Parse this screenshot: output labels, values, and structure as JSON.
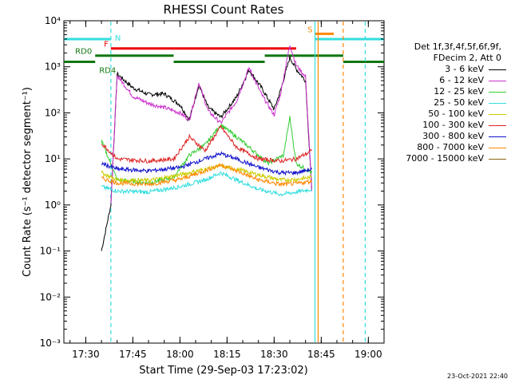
{
  "chart_data": {
    "type": "line",
    "title": "RHESSI Count Rates",
    "xlabel": "Start Time (29-Sep-03 17:23:02)",
    "ylabel": "Count Rate (s⁻¹ detector segment⁻¹)",
    "yscale": "log",
    "ylim": [
      0.001,
      10000
    ],
    "y_ticks": [
      "10⁻³",
      "10⁻²",
      "10⁻¹",
      "10⁰",
      "10¹",
      "10²",
      "10³",
      "10⁴"
    ],
    "xlim": [
      "17:23:02",
      "19:05:00"
    ],
    "x_ticks": [
      "17:30",
      "17:45",
      "18:00",
      "18:15",
      "18:30",
      "18:45",
      "19:00"
    ],
    "legend_header": [
      "Det 1f,3f,4f,5f,6f,9f,",
      "FDecim 2, Att 0"
    ],
    "legend_placement": "right",
    "series": [
      {
        "name": "3 - 6 keV",
        "color": "#000000",
        "x": [
          "17:35:00",
          "17:38:00",
          "17:40:00",
          "17:45:00",
          "17:50:00",
          "17:55:00",
          "18:00:00",
          "18:03:00",
          "18:06:00",
          "18:09:00",
          "18:13:00",
          "18:18:00",
          "18:22:00",
          "18:26:00",
          "18:30:00",
          "18:32:00",
          "18:35:00",
          "18:37:00",
          "18:40:00",
          "18:42:00"
        ],
        "y": [
          0.1,
          1.0,
          700,
          350,
          250,
          260,
          150,
          70,
          400,
          130,
          80,
          220,
          850,
          350,
          120,
          300,
          1600,
          900,
          500,
          2
        ]
      },
      {
        "name": "6 - 12 keV",
        "color": "#cc33cc",
        "x": [
          "17:38:00",
          "17:40:00",
          "17:45:00",
          "17:50:00",
          "17:55:00",
          "18:00:00",
          "18:03:00",
          "18:06:00",
          "18:09:00",
          "18:13:00",
          "18:18:00",
          "18:22:00",
          "18:26:00",
          "18:30:00",
          "18:32:00",
          "18:35:00",
          "18:37:00",
          "18:40:00",
          "18:42:00"
        ],
        "y": [
          1.0,
          650,
          230,
          160,
          130,
          100,
          70,
          450,
          110,
          60,
          180,
          950,
          250,
          90,
          250,
          3000,
          1100,
          600,
          2
        ]
      },
      {
        "name": "12 - 25 keV",
        "color": "#33cc33",
        "x": [
          "17:35:00",
          "17:40:00",
          "17:50:00",
          "17:58:00",
          "18:03:00",
          "18:08:00",
          "18:13:00",
          "18:18:00",
          "18:22:00",
          "18:28:00",
          "18:33:00",
          "18:35:00",
          "18:37:00",
          "18:42:00"
        ],
        "y": [
          25,
          3.5,
          3.0,
          4.0,
          12,
          20,
          55,
          30,
          18,
          8,
          12,
          80,
          8,
          5
        ]
      },
      {
        "name": "25 - 50 keV",
        "color": "#33dddd",
        "x": [
          "17:35:00",
          "17:40:00",
          "17:50:00",
          "18:00:00",
          "18:08:00",
          "18:13:00",
          "18:18:00",
          "18:25:00",
          "18:32:00",
          "18:37:00",
          "18:42:00"
        ],
        "y": [
          2.5,
          2.0,
          1.9,
          2.5,
          3.5,
          5.0,
          3.5,
          2.2,
          1.7,
          1.9,
          2.2
        ]
      },
      {
        "name": "50 - 100 keV",
        "color": "#cccc00",
        "x": [
          "17:35:00",
          "17:40:00",
          "17:50:00",
          "18:00:00",
          "18:08:00",
          "18:13:00",
          "18:18:00",
          "18:25:00",
          "18:32:00",
          "18:37:00",
          "18:42:00"
        ],
        "y": [
          5,
          3.5,
          3.4,
          4.5,
          6,
          7,
          6,
          4.5,
          3.5,
          3.6,
          4
        ]
      },
      {
        "name": "100 - 300 keV",
        "color": "#dd2222",
        "x": [
          "17:35:00",
          "17:40:00",
          "17:50:00",
          "17:58:00",
          "18:03:00",
          "18:08:00",
          "18:13:00",
          "18:18:00",
          "18:25:00",
          "18:32:00",
          "18:37:00",
          "18:42:00"
        ],
        "y": [
          22,
          10,
          9,
          10,
          30,
          15,
          50,
          18,
          10,
          9,
          10,
          15
        ]
      },
      {
        "name": "300 - 800 keV",
        "color": "#1111cc",
        "x": [
          "17:35:00",
          "17:40:00",
          "17:50:00",
          "18:00:00",
          "18:08:00",
          "18:13:00",
          "18:18:00",
          "18:25:00",
          "18:32:00",
          "18:37:00",
          "18:42:00"
        ],
        "y": [
          8,
          6,
          5.5,
          6.5,
          10,
          13,
          10,
          6.5,
          5,
          5,
          6
        ]
      },
      {
        "name": "800 - 7000 keV",
        "color": "#ff8800",
        "x": [
          "17:35:00",
          "17:40:00",
          "17:50:00",
          "18:00:00",
          "18:08:00",
          "18:13:00",
          "18:18:00",
          "18:25:00",
          "18:32:00",
          "18:37:00",
          "18:42:00"
        ],
        "y": [
          3.8,
          3.0,
          2.8,
          3.6,
          5.5,
          7.5,
          5.5,
          3.5,
          2.8,
          2.9,
          3.3
        ]
      },
      {
        "name": "7000 - 15000 keV",
        "color": "#886611",
        "x": [],
        "y": []
      }
    ],
    "flag_bars": [
      {
        "label": "N",
        "color": "#33dddd",
        "y": 4000,
        "segments": [
          [
            "17:23:02",
            "17:38:00"
          ],
          [
            "18:43:00",
            "19:05:00"
          ]
        ]
      },
      {
        "label": "F",
        "color": "#ee0000",
        "y": 2500,
        "segments": [
          [
            "17:38:00",
            "18:37:00"
          ]
        ]
      },
      {
        "label": "S",
        "color": "#ff8800",
        "y": 5200,
        "segments": [
          [
            "18:43:00",
            "18:49:00"
          ]
        ]
      },
      {
        "label": "RD0",
        "color": "#117711",
        "y": 1750,
        "segments": [
          [
            "17:33:00",
            "17:58:00"
          ],
          [
            "18:27:00",
            "18:52:00"
          ]
        ]
      },
      {
        "label": "RD4",
        "color": "#117711",
        "y": 1280,
        "segments": [
          [
            "17:23:02",
            "17:33:00"
          ],
          [
            "17:58:00",
            "18:27:00"
          ],
          [
            "18:52:00",
            "19:05:00"
          ]
        ]
      }
    ],
    "vlines": [
      {
        "x": "17:38:00",
        "color": "#33dddd",
        "style": "dashed"
      },
      {
        "x": "18:43:00",
        "color": "#33dddd",
        "style": "solid"
      },
      {
        "x": "18:44:00",
        "color": "#ff8800",
        "style": "solid"
      },
      {
        "x": "18:52:00",
        "color": "#ff8800",
        "style": "dashed"
      },
      {
        "x": "18:59:00",
        "color": "#33dddd",
        "style": "dashed"
      }
    ]
  },
  "footer": {
    "timestamp": "23-Oct-2021 22:40"
  }
}
